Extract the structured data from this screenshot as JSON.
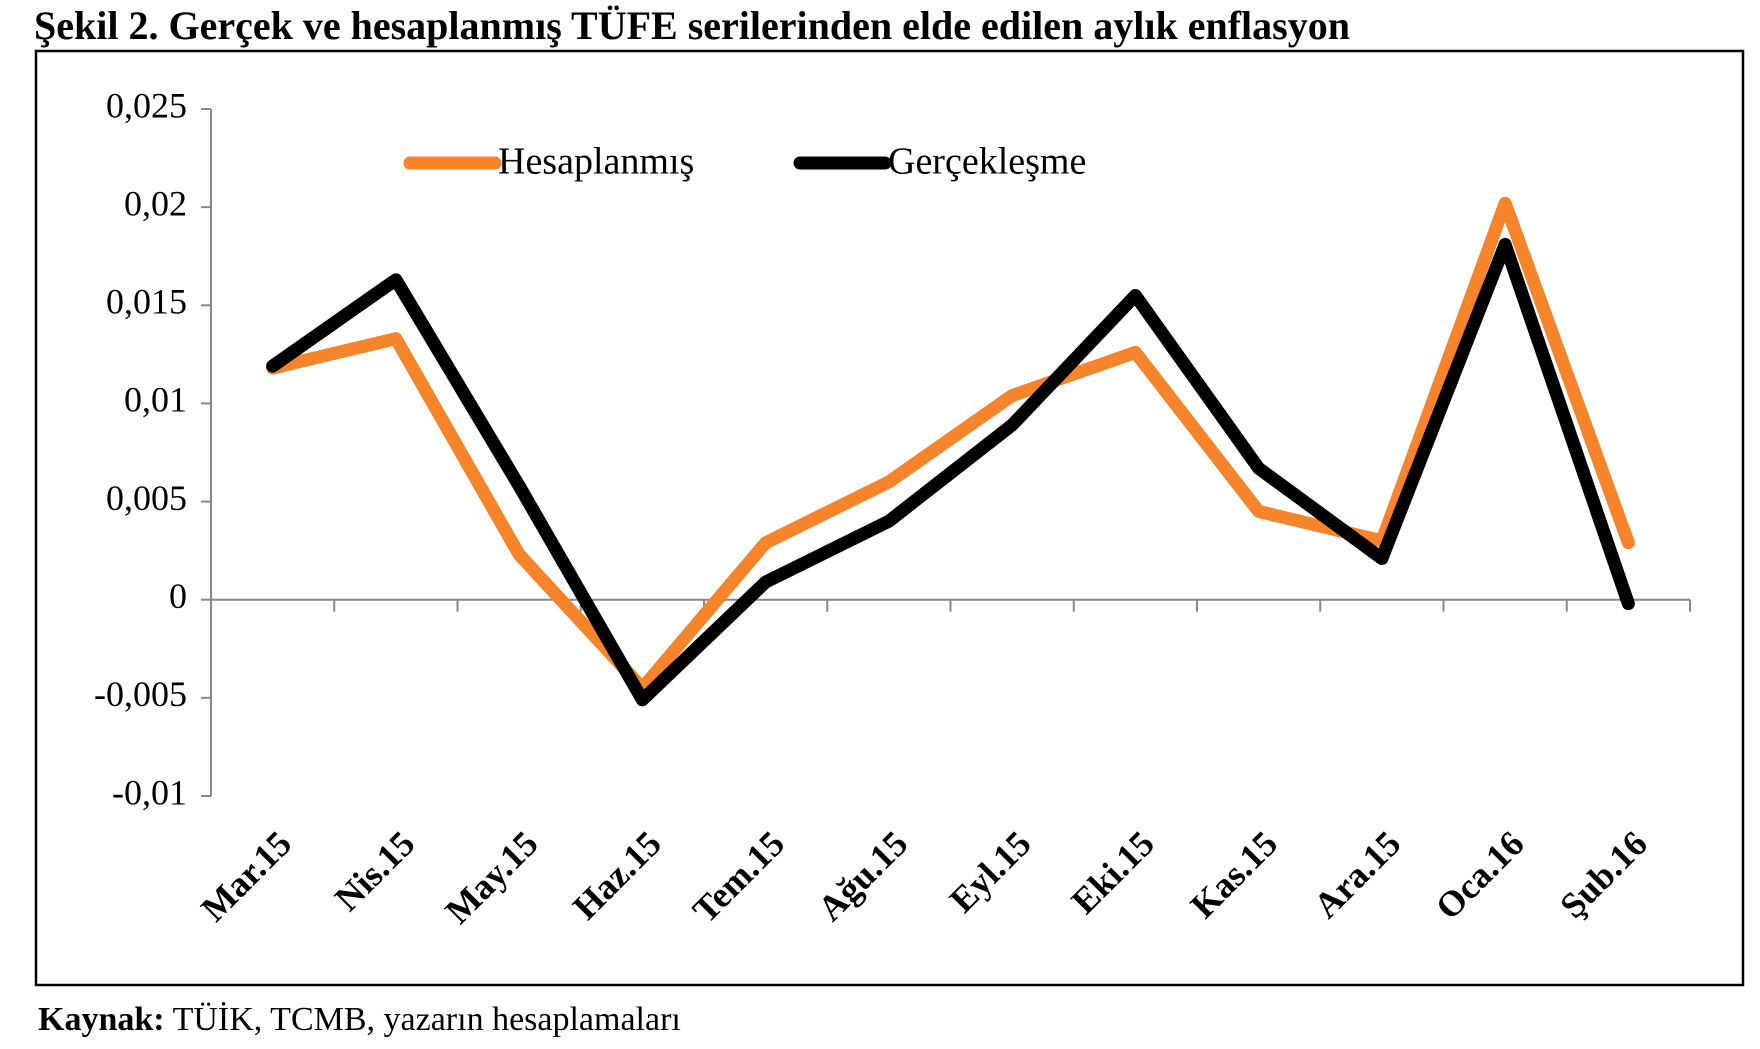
{
  "chart_data": {
    "type": "line",
    "title": "Şekil 2. Gerçek ve hesaplanmış TÜFE serilerinden elde edilen aylık enflasyon",
    "categories": [
      "Mar.15",
      "Nis.15",
      "May.15",
      "Haz.15",
      "Tem.15",
      "Ağu.15",
      "Eyl.15",
      "Eki.15",
      "Kas.15",
      "Ara.15",
      "Oca.16",
      "Şub.16"
    ],
    "series": [
      {
        "name": "Hesaplanmış",
        "color": "#f6842a",
        "values": [
          0.0118,
          0.0133,
          0.0023,
          -0.0045,
          0.0029,
          0.006,
          0.0104,
          0.0126,
          0.0045,
          0.003,
          0.0202,
          0.0029
        ]
      },
      {
        "name": "Gerçekleşme",
        "color": "#000000",
        "values": [
          0.0119,
          0.0163,
          0.0058,
          -0.0051,
          0.0009,
          0.004,
          0.0089,
          0.0155,
          0.0067,
          0.0021,
          0.0181,
          -0.0002
        ]
      }
    ],
    "ylim": [
      -0.01,
      0.025
    ],
    "yticks": [
      {
        "value": -0.01,
        "label": "-0,01"
      },
      {
        "value": -0.005,
        "label": "-0,005"
      },
      0,
      {
        "value": 0.005,
        "label": "0,005"
      },
      {
        "value": 0.01,
        "label": "0,01"
      },
      {
        "value": 0.015,
        "label": "0,015"
      },
      {
        "value": 0.02,
        "label": "0,02"
      },
      {
        "value": 0.025,
        "label": "0,025"
      }
    ],
    "source": {
      "label": "Kaynak:",
      "text": "TÜİK, TCMB, yazarın hesaplamaları"
    }
  }
}
